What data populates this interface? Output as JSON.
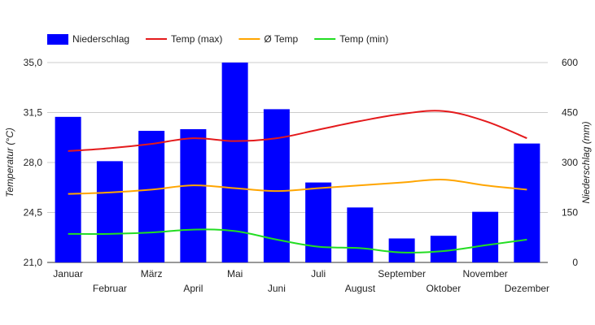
{
  "chart_data": {
    "type": "bar",
    "categories": [
      "Januar",
      "Februar",
      "März",
      "April",
      "Mai",
      "Juni",
      "Juli",
      "August",
      "September",
      "Oktober",
      "November",
      "Dezember"
    ],
    "series": [
      {
        "name": "Niederschlag",
        "type": "bar",
        "axis": "right",
        "color": "#0000ff",
        "values": [
          437,
          304,
          395,
          400,
          600,
          460,
          240,
          165,
          72,
          80,
          152,
          357
        ]
      },
      {
        "name": "Temp (max)",
        "type": "line",
        "axis": "left",
        "color": "#e41a1c",
        "values": [
          28.8,
          29.0,
          29.3,
          29.7,
          29.5,
          29.7,
          30.3,
          30.9,
          31.4,
          31.6,
          30.9,
          29.7
        ]
      },
      {
        "name": "Ø Temp",
        "type": "line",
        "axis": "left",
        "color": "#ffa500",
        "values": [
          25.8,
          25.9,
          26.1,
          26.4,
          26.2,
          26.0,
          26.2,
          26.4,
          26.6,
          26.8,
          26.4,
          26.1
        ]
      },
      {
        "name": "Temp (min)",
        "type": "line",
        "axis": "left",
        "color": "#22dd22",
        "values": [
          23.0,
          23.0,
          23.1,
          23.3,
          23.2,
          22.6,
          22.1,
          22.0,
          21.7,
          21.8,
          22.2,
          22.6
        ]
      }
    ],
    "yleft": {
      "label": "Temperatur (°C)",
      "ticks": [
        "21,0",
        "24,5",
        "28,0",
        "31,5",
        "35,0"
      ],
      "min": 21,
      "max": 35
    },
    "yright": {
      "label": "Niederschlag (mm)",
      "ticks": [
        "0",
        "150",
        "300",
        "450",
        "600"
      ],
      "min": 0,
      "max": 600
    },
    "legend_position": "top-left",
    "grid": true
  }
}
